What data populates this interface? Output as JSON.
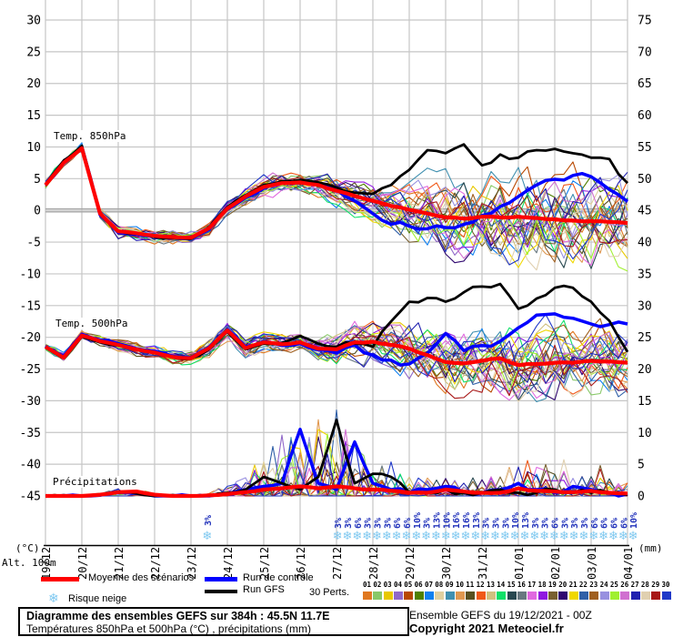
{
  "axes": {
    "left_unit": "(°C)",
    "right_unit": "(mm)",
    "alt_label": "Alt. 100m",
    "left_ticks": [
      30,
      25,
      20,
      15,
      10,
      5,
      0,
      -5,
      -10,
      -15,
      -20,
      -25,
      -30,
      -35,
      -40,
      -45
    ],
    "right_ticks": [
      75,
      70,
      65,
      60,
      55,
      50,
      45,
      40,
      35,
      30,
      25,
      20,
      15,
      10,
      5,
      0
    ],
    "dates": [
      "19/12",
      "20/12",
      "21/12",
      "22/12",
      "23/12",
      "24/12",
      "25/12",
      "26/12",
      "27/12",
      "28/12",
      "29/12",
      "30/12",
      "31/12",
      "01/01",
      "02/01",
      "03/01",
      "04/01"
    ]
  },
  "labels": {
    "temp850": "Temp. 850hPa",
    "temp500": "Temp. 500hPa",
    "precip": "Précipitations"
  },
  "legend": {
    "mean_label": "Moyenne des scénarios",
    "mean_color": "#ff0000",
    "control_label": "Run de contrôle",
    "control_color": "#0000ff",
    "gfs_label": "Run GFS",
    "gfs_color": "#000000",
    "perts_label": "30 Perts.",
    "snow_label": "Risque neige",
    "snow_icon_color": "#7ec8f0"
  },
  "perturbations": {
    "ids": [
      "01",
      "02",
      "03",
      "04",
      "05",
      "06",
      "07",
      "08",
      "09",
      "10",
      "11",
      "12",
      "13",
      "14",
      "15",
      "16",
      "17",
      "18",
      "19",
      "20",
      "21",
      "22",
      "23",
      "24",
      "25",
      "26",
      "27",
      "28",
      "29",
      "30"
    ],
    "colors": [
      "#e07820",
      "#88c868",
      "#e8c800",
      "#9068c8",
      "#b84800",
      "#508000",
      "#1080f0",
      "#e0d0a0",
      "#4090b0",
      "#e09850",
      "#585020",
      "#f05818",
      "#d0c080",
      "#10e068",
      "#284850",
      "#687880",
      "#e068e0",
      "#9018e0",
      "#786030",
      "#300870",
      "#f0d800",
      "#3060a8",
      "#a06020",
      "#9890e0",
      "#a0f030",
      "#d070d0",
      "#2020b0",
      "#e0d0b0",
      "#a81818",
      "#2038c8"
    ]
  },
  "snow_risk": {
    "percent_color": "#2233bb",
    "single": {
      "hour": 107,
      "percent": "3%"
    },
    "row": {
      "start_hour": 193,
      "step_hours": 6.5,
      "percents": [
        "3%",
        "3%",
        "6%",
        "3%",
        "3%",
        "3%",
        "6%",
        "6%",
        "10%",
        "3%",
        "13%",
        "10%",
        "16%",
        "16%",
        "13%",
        "3%",
        "3%",
        "3%",
        "10%",
        "13%",
        "3%",
        "3%",
        "6%",
        "3%",
        "3%",
        "3%",
        "6%",
        "6%",
        "6%",
        "6%",
        "10%"
      ]
    }
  },
  "footer": {
    "title": "Diagramme des ensembles GEFS sur 384h : 45.5N 11.7E",
    "subtitle": "Températures 850hPa et 500hPa (°C) , précipitations (mm)",
    "run": "Ensemble GEFS du 19/12/2021 - 00Z",
    "copyright": "Copyright 2021 Meteociel.fr"
  },
  "chart_data": [
    {
      "type": "line",
      "title": "Temp. 850hPa",
      "unit": "°C",
      "x_step_hours": 12,
      "ylim_left": [
        -45,
        30
      ],
      "series": [
        {
          "name": "Moyenne des scénarios",
          "color": "#ff0000",
          "values": [
            4.0,
            7.5,
            9.8,
            -0.5,
            -3.3,
            -3.6,
            -4.0,
            -4.2,
            -4.3,
            -2.8,
            0.3,
            2.2,
            3.7,
            4.3,
            4.4,
            4.0,
            3.1,
            2.3,
            1.5,
            0.7,
            0.1,
            -0.5,
            -1.1,
            -1.3,
            -1.0,
            -1.1,
            -1.0,
            -1.2,
            -1.4,
            -1.6,
            -1.7,
            -1.8,
            -2.0
          ]
        },
        {
          "name": "Run de contrôle",
          "color": "#0000ff",
          "values": [
            4.0,
            7.6,
            10.0,
            -0.7,
            -3.5,
            -3.8,
            -4.1,
            -4.3,
            -4.4,
            -3.0,
            0.2,
            2.0,
            3.5,
            4.5,
            4.6,
            4.2,
            3.3,
            1.5,
            -0.5,
            -2.2,
            -2.5,
            -2.9,
            -2.7,
            -2.2,
            -0.8,
            0.6,
            2.2,
            4.0,
            4.9,
            5.5,
            5.3,
            3.3,
            1.4
          ]
        },
        {
          "name": "Run GFS",
          "color": "#000000",
          "values": [
            4.1,
            7.8,
            10.2,
            -0.4,
            -3.2,
            -3.7,
            -4.2,
            -4.4,
            -4.5,
            -2.6,
            0.5,
            2.4,
            4.0,
            4.6,
            4.8,
            4.4,
            3.6,
            2.8,
            2.6,
            4.0,
            6.4,
            9.5,
            9.0,
            10.4,
            7.1,
            8.8,
            8.3,
            9.5,
            9.7,
            9.0,
            8.3,
            8.1,
            4.3
          ]
        }
      ],
      "ensemble_spread": {
        "lo": [
          -0.6,
          -0.6,
          -0.7,
          -1.2,
          -1.3,
          -1.3,
          -1.3,
          -1.3,
          -1.3,
          -1.4,
          -1.5,
          -1.8,
          -2.0,
          -2.0,
          -2.2,
          -2.5,
          -3.0,
          -3.5,
          -4.0,
          -4.6,
          -6.0,
          -6.5,
          -7.0,
          -7.5,
          -8.0,
          -8.3,
          -8.5,
          -8.5,
          -8.5,
          -8.4,
          -8.3,
          -8.2,
          -8.0
        ],
        "hi": [
          0.6,
          0.6,
          0.7,
          1.2,
          1.3,
          1.3,
          1.3,
          1.3,
          1.3,
          1.5,
          1.6,
          1.8,
          2.0,
          2.0,
          2.2,
          2.5,
          3.2,
          3.8,
          4.5,
          5.2,
          7.0,
          8.0,
          9.0,
          10.0,
          10.5,
          11.0,
          11.0,
          11.0,
          10.8,
          10.8,
          10.8,
          11.0,
          11.0
        ]
      }
    },
    {
      "type": "line",
      "title": "Temp. 500hPa",
      "unit": "°C",
      "x_step_hours": 12,
      "series": [
        {
          "name": "Moyenne des scénarios",
          "color": "#ff0000",
          "values": [
            -21.5,
            -23.2,
            -19.7,
            -20.6,
            -21.2,
            -21.9,
            -22.4,
            -23.1,
            -23.3,
            -21.7,
            -18.9,
            -21.7,
            -20.8,
            -21.1,
            -20.8,
            -21.8,
            -21.9,
            -20.8,
            -20.7,
            -21.2,
            -21.8,
            -22.8,
            -23.9,
            -24.1,
            -23.7,
            -23.3,
            -24.4,
            -24.2,
            -24.0,
            -24.0,
            -23.7,
            -23.8,
            -24.0
          ]
        },
        {
          "name": "Run de contrôle",
          "color": "#0000ff",
          "values": [
            -21.4,
            -23.0,
            -19.5,
            -20.4,
            -21.0,
            -21.8,
            -22.2,
            -23.0,
            -23.2,
            -21.5,
            -18.7,
            -21.5,
            -20.6,
            -21.3,
            -21.0,
            -22.0,
            -22.5,
            -21.2,
            -22.8,
            -23.6,
            -24.2,
            -22.5,
            -19.4,
            -22.1,
            -21.3,
            -20.6,
            -18.5,
            -16.5,
            -16.3,
            -17.0,
            -17.9,
            -18.0,
            -17.9
          ]
        },
        {
          "name": "Run GFS",
          "color": "#000000",
          "values": [
            -21.6,
            -23.3,
            -19.9,
            -20.8,
            -21.3,
            -22.0,
            -22.5,
            -23.2,
            -23.4,
            -21.9,
            -19.1,
            -21.9,
            -21.0,
            -20.9,
            -19.8,
            -21.0,
            -21.5,
            -21.0,
            -21.5,
            -17.5,
            -14.4,
            -13.8,
            -14.4,
            -12.9,
            -12.0,
            -11.6,
            -15.5,
            -13.9,
            -12.2,
            -12.2,
            -14.4,
            -17.4,
            -22.3
          ]
        }
      ],
      "ensemble_spread": {
        "lo": [
          -0.8,
          -0.8,
          -0.8,
          -1.2,
          -1.2,
          -1.2,
          -1.2,
          -1.2,
          -1.5,
          -2.0,
          -2.0,
          -2.0,
          -2.0,
          -2.0,
          -2.2,
          -2.5,
          -3.0,
          -3.5,
          -4.0,
          -4.5,
          -5.0,
          -5.5,
          -6.0,
          -6.0,
          -6.0,
          -6.0,
          -6.0,
          -6.0,
          -6.0,
          -6.0,
          -6.0,
          -6.0,
          -6.0
        ],
        "hi": [
          0.8,
          0.8,
          0.8,
          1.2,
          1.2,
          1.2,
          1.2,
          1.2,
          1.5,
          2.0,
          2.2,
          2.2,
          2.2,
          2.2,
          2.5,
          3.0,
          4.0,
          5.0,
          5.0,
          5.5,
          6.5,
          7.5,
          8.5,
          9.0,
          9.5,
          10.0,
          10.5,
          10.5,
          10.5,
          10.5,
          10.0,
          10.0,
          10.0
        ]
      }
    },
    {
      "type": "line",
      "title": "Précipitations",
      "unit": "mm",
      "x_step_hours": 12,
      "baseline_temp_axis_value": -45,
      "series": [
        {
          "name": "Moyenne des scénarios",
          "color": "#ff0000",
          "values": [
            0,
            0,
            0,
            0.2,
            0.6,
            0.7,
            0.2,
            0,
            0,
            0.1,
            0.3,
            0.6,
            1.0,
            1.2,
            1.5,
            1.2,
            1.5,
            1.2,
            1.0,
            0.8,
            0.5,
            0.5,
            1.0,
            0.7,
            0.5,
            0.5,
            1.2,
            0.8,
            0.7,
            0.6,
            0.8,
            0.5,
            0.4
          ]
        },
        {
          "name": "Run de contrôle",
          "color": "#0000ff",
          "values": [
            0,
            0,
            0,
            0.1,
            0.5,
            0.4,
            0,
            0,
            0,
            0,
            0.3,
            1.0,
            1.5,
            2.0,
            10.5,
            2.0,
            1.0,
            8.5,
            2.0,
            1.0,
            0.5,
            1.0,
            1.5,
            0.5,
            0.5,
            1.0,
            2.0,
            1.0,
            0.5,
            1.5,
            1.0,
            0.5,
            0.3
          ]
        },
        {
          "name": "Run GFS",
          "color": "#000000",
          "values": [
            0,
            0,
            0,
            0.2,
            0.5,
            0.4,
            0,
            0,
            0,
            0,
            0.5,
            1.0,
            3.0,
            2.0,
            1.0,
            3.0,
            12.0,
            2.0,
            3.5,
            3.0,
            0.5,
            0.5,
            1.0,
            0.5,
            0.5,
            1.0,
            0.5,
            0.5,
            1.0,
            0.5,
            0.5,
            0.5,
            0.2
          ]
        }
      ],
      "ensemble_spread": {
        "hi": [
          0.3,
          0.3,
          0.4,
          0.8,
          1.2,
          1.5,
          0.5,
          0.3,
          0.3,
          0.5,
          2,
          4,
          8,
          10,
          12,
          11,
          12,
          9,
          6,
          5,
          3,
          3,
          4,
          3,
          3,
          4,
          6,
          5,
          10,
          4,
          5,
          4,
          2
        ]
      }
    }
  ]
}
